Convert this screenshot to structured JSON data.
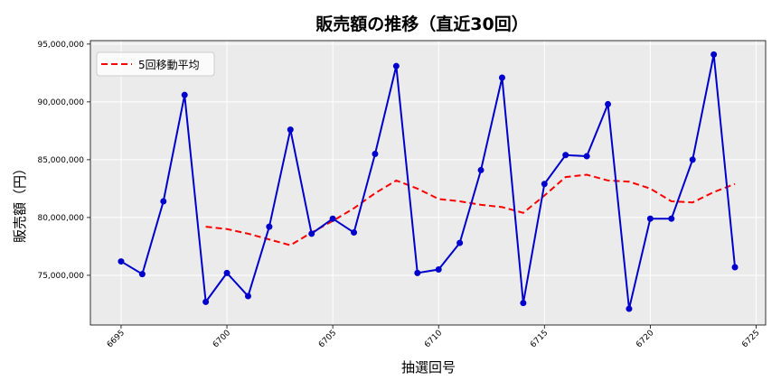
{
  "chart_data": {
    "type": "line",
    "title": "販売額の推移（直近30回）",
    "xlabel": "抽選回号",
    "ylabel": "販売額（円）",
    "x": [
      6695,
      6696,
      6697,
      6698,
      6699,
      6700,
      6701,
      6702,
      6703,
      6704,
      6705,
      6706,
      6707,
      6708,
      6709,
      6710,
      6711,
      6712,
      6713,
      6714,
      6715,
      6716,
      6717,
      6718,
      6719,
      6720,
      6721,
      6722,
      6723,
      6724
    ],
    "xlim": [
      6693.55,
      6725.45
    ],
    "ylim": [
      70700000,
      95300000
    ],
    "xticks": [
      6695,
      6700,
      6705,
      6710,
      6715,
      6720,
      6725
    ],
    "yticks": [
      75000000,
      80000000,
      85000000,
      90000000,
      95000000
    ],
    "ytick_labels": [
      "75,000,000",
      "80,000,000",
      "85,000,000",
      "90,000,000",
      "95,000,000"
    ],
    "grid": true,
    "legend_position": "top-left",
    "series": [
      {
        "color": "#0000cc",
        "style": "solid-with-markers",
        "values": [
          76200000,
          75100000,
          81400000,
          90600000,
          72700000,
          75200000,
          73200000,
          79200000,
          87600000,
          78600000,
          79900000,
          78700000,
          85500000,
          93100000,
          75200000,
          75500000,
          77800000,
          84100000,
          92100000,
          72600000,
          82900000,
          85400000,
          85300000,
          89800000,
          72100000,
          79900000,
          79900000,
          85000000,
          94100000,
          75700000
        ]
      },
      {
        "name": "5回移動平均",
        "color": "#ff0000",
        "style": "dashed",
        "values": [
          null,
          null,
          null,
          null,
          79200000,
          79000000,
          78600000,
          78100000,
          77600000,
          78700000,
          79700000,
          80800000,
          82100000,
          83200000,
          82500000,
          81600000,
          81400000,
          81100000,
          80900000,
          80400000,
          81900000,
          83500000,
          83700000,
          83200000,
          83100000,
          82500000,
          81400000,
          81300000,
          82200000,
          82900000
        ]
      }
    ]
  },
  "colors": {
    "plot_background": "#ebebeb",
    "grid": "#ffffff"
  }
}
